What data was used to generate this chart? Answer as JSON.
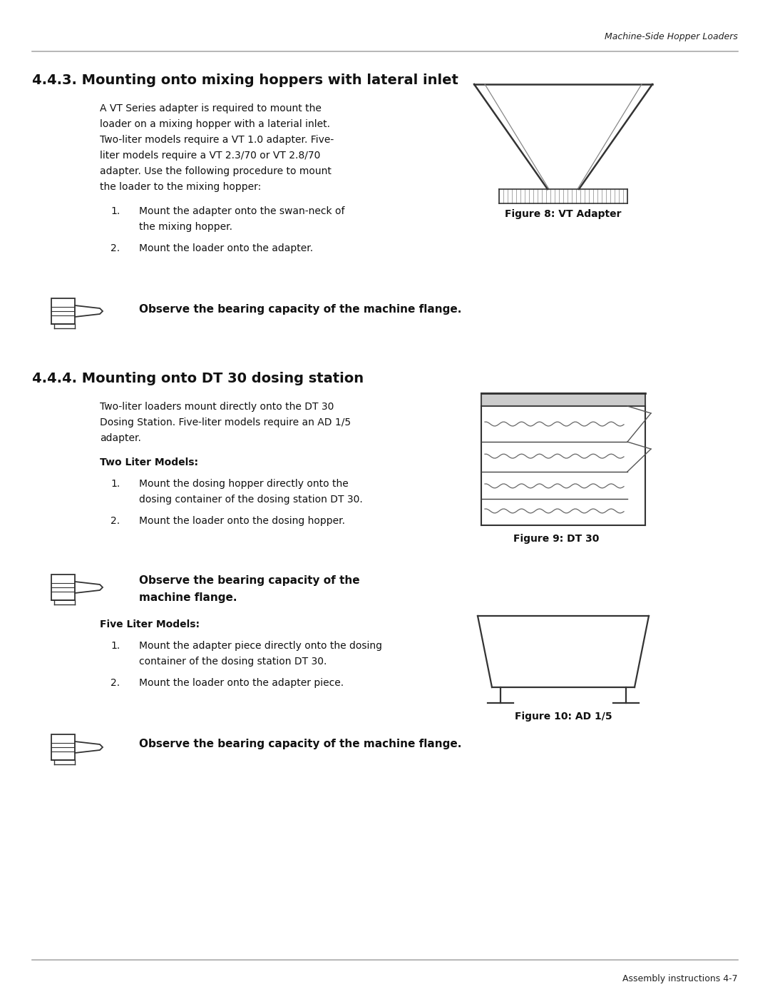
{
  "page_header_right": "Machine-Side Hopper Loaders",
  "page_footer_right": "Assembly instructions 4-7",
  "section1_heading": "4.4.3. Mounting onto mixing hoppers with lateral inlet",
  "section1_para1": "A VT Series adapter is required to mount the",
  "section1_para2": "loader on a mixing hopper with a laterial inlet.",
  "section1_para3": "Two-liter models require a VT 1.0 adapter. Five-",
  "section1_para4": "liter models require a VT 2.3/70 or VT 2.8/70",
  "section1_para5": "adapter. Use the following procedure to mount",
  "section1_para6": "the loader to the mixing hopper:",
  "section1_step1a": "Mount the adapter onto the swan-neck of",
  "section1_step1b": "the mixing hopper.",
  "section1_step2": "Mount the loader onto the adapter.",
  "section1_fig_caption": "Figure 8: VT Adapter",
  "section1_note": "Observe the bearing capacity of the machine flange.",
  "section2_heading": "4.4.4. Mounting onto DT 30 dosing station",
  "section2_para1": "Two-liter loaders mount directly onto the DT 30",
  "section2_para2": "Dosing Station. Five-liter models require an AD 1/5",
  "section2_para3": "adapter.",
  "section2_sub1": "Two Liter Models:",
  "section2_step1a": "Mount the dosing hopper directly onto the",
  "section2_step1b": "dosing container of the dosing station DT 30.",
  "section2_step2": "Mount the loader onto the dosing hopper.",
  "section2_fig_caption": "Figure 9: DT 30",
  "section2_note1a": "Observe the bearing capacity of the",
  "section2_note1b": "machine flange.",
  "section2_sub2": "Five Liter Models:",
  "section2_step3a": "Mount the adapter piece directly onto the dosing",
  "section2_step3b": "container of the dosing station DT 30.",
  "section2_step4": "Mount the loader onto the adapter piece.",
  "section2_fig2_caption": "Figure 10: AD 1/5",
  "section2_note2": "Observe the bearing capacity of the machine flange.",
  "bg_color": "#ffffff"
}
